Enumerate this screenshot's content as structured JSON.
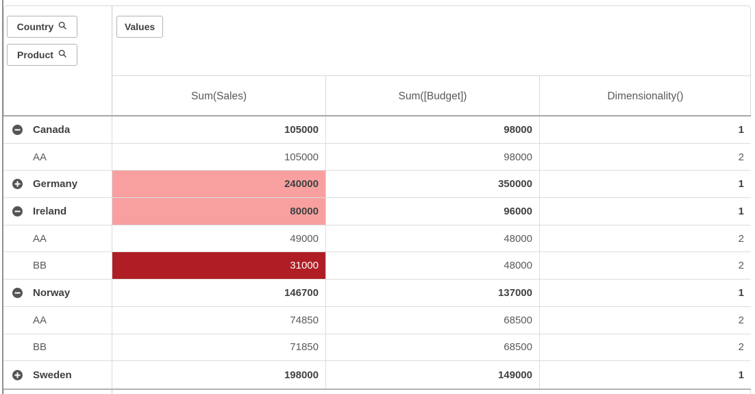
{
  "panel": {
    "dimension_buttons": [
      {
        "label": "Country",
        "icon": "search-icon"
      },
      {
        "label": "Product",
        "icon": "search-icon"
      }
    ],
    "values_button": {
      "label": "Values"
    }
  },
  "table": {
    "measure_headers": [
      "Sum(Sales)",
      "Sum([Budget])",
      "Dimensionality()"
    ],
    "rows": [
      {
        "label": "Canada",
        "icon": "collapse",
        "bold": true,
        "sales": "105000",
        "budget": "98000",
        "dim": "1",
        "sales_bg": null
      },
      {
        "label": "AA",
        "icon": null,
        "bold": false,
        "sales": "105000",
        "budget": "98000",
        "dim": "2",
        "sales_bg": null
      },
      {
        "label": "Germany",
        "icon": "expand",
        "bold": true,
        "sales": "240000",
        "budget": "350000",
        "dim": "1",
        "sales_bg": "pink"
      },
      {
        "label": "Ireland",
        "icon": "collapse",
        "bold": true,
        "sales": "80000",
        "budget": "96000",
        "dim": "1",
        "sales_bg": "pink"
      },
      {
        "label": "AA",
        "icon": null,
        "bold": false,
        "sales": "49000",
        "budget": "48000",
        "dim": "2",
        "sales_bg": null
      },
      {
        "label": "BB",
        "icon": null,
        "bold": false,
        "sales": "31000",
        "budget": "48000",
        "dim": "2",
        "sales_bg": "darkred"
      },
      {
        "label": "Norway",
        "icon": "collapse",
        "bold": true,
        "sales": "146700",
        "budget": "137000",
        "dim": "1",
        "sales_bg": null
      },
      {
        "label": "AA",
        "icon": null,
        "bold": false,
        "sales": "74850",
        "budget": "68500",
        "dim": "2",
        "sales_bg": null
      },
      {
        "label": "BB",
        "icon": null,
        "bold": false,
        "sales": "71850",
        "budget": "68500",
        "dim": "2",
        "sales_bg": null
      },
      {
        "label": "Sweden",
        "icon": "expand",
        "bold": true,
        "sales": "198000",
        "budget": "149000",
        "dim": "1",
        "sales_bg": null
      }
    ]
  },
  "colors": {
    "highlight_pink": "#f8a0a0",
    "highlight_dark_red": "#ae1e24",
    "dark_red_text": "#ffffff",
    "text_dark": "#404040",
    "text_regular": "#595959"
  }
}
